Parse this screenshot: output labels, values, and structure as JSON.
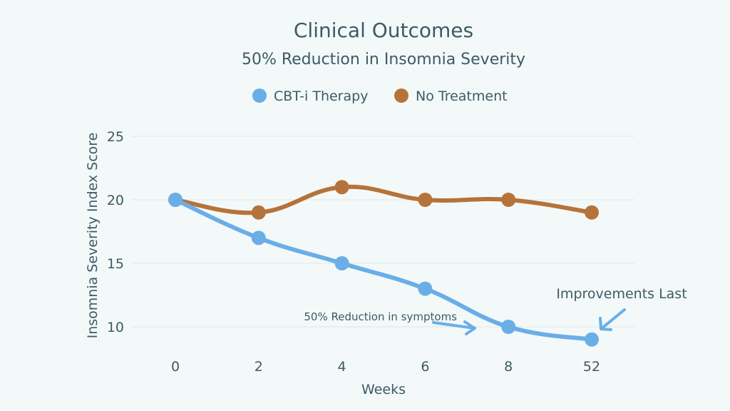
{
  "chart_data": {
    "type": "line",
    "title": "Clinical Outcomes",
    "subtitle": "50% Reduction in Insomnia Severity",
    "xlabel": "Weeks",
    "ylabel": "Insomnia Severity Index Score",
    "categories": [
      "0",
      "2",
      "4",
      "6",
      "8",
      "52"
    ],
    "yticks": [
      10,
      15,
      20,
      25
    ],
    "ylim": [
      9,
      25
    ],
    "grid": true,
    "legend_position": "top-center",
    "series": [
      {
        "name": "CBT-i Therapy",
        "color": "#6aaee8",
        "values": [
          20,
          17,
          15,
          13,
          10,
          9
        ]
      },
      {
        "name": "No Treatment",
        "color": "#b5733a",
        "values": [
          20,
          19,
          21,
          20,
          20,
          19
        ]
      }
    ],
    "annotations": [
      {
        "text": "50% Reduction in symptoms",
        "x": "8",
        "y": 10
      },
      {
        "text": "Improvements Last",
        "x": "52",
        "y": 9
      }
    ]
  }
}
